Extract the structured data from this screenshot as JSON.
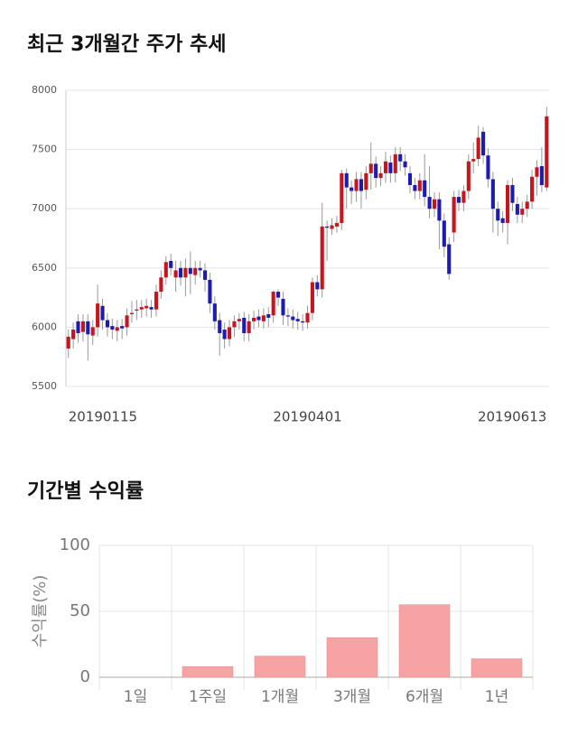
{
  "chart_data": [
    {
      "type": "candlestick",
      "title": "최근 3개월간 주가 추세",
      "categories": [
        "20190115",
        null,
        null,
        null,
        null,
        null,
        null,
        null,
        null,
        null,
        null,
        null,
        null,
        null,
        null,
        null,
        null,
        null,
        null,
        null,
        null,
        null,
        null,
        null,
        null,
        null,
        null,
        null,
        null,
        null,
        null,
        null,
        null,
        null,
        null,
        null,
        null,
        null,
        null,
        null,
        null,
        null,
        null,
        null,
        null,
        null,
        null,
        null,
        null,
        "20190401",
        null,
        null,
        null,
        null,
        null,
        null,
        null,
        null,
        null,
        null,
        null,
        null,
        null,
        null,
        null,
        null,
        null,
        null,
        null,
        null,
        null,
        null,
        null,
        null,
        null,
        null,
        null,
        null,
        null,
        null,
        null,
        null,
        null,
        null,
        null,
        null,
        null,
        null,
        null,
        null,
        null,
        null,
        null,
        null,
        null,
        null,
        null,
        null,
        "20190613"
      ],
      "open": [
        5820,
        5900,
        6050,
        5960,
        6050,
        5930,
        6000,
        6180,
        6060,
        6010,
        5970,
        6010,
        6000,
        6110,
        6140,
        6150,
        6160,
        6170,
        6150,
        6300,
        6420,
        6560,
        6420,
        6500,
        6420,
        6500,
        6440,
        6500,
        6480,
        6400,
        6200,
        6060,
        5980,
        5900,
        6000,
        6050,
        6080,
        5950,
        6050,
        6090,
        6050,
        6110,
        6100,
        6300,
        6240,
        6100,
        6090,
        6070,
        6050,
        6040,
        6120,
        6380,
        6320,
        6850,
        6830,
        6850,
        6880,
        7300,
        7180,
        7150,
        7250,
        7160,
        7300,
        7380,
        7260,
        7300,
        7390,
        7300,
        7460,
        7400,
        7300,
        7200,
        7150,
        7240,
        7100,
        7000,
        7080,
        6900,
        6700,
        6800,
        7100,
        7050,
        7150,
        7400,
        7420,
        7650,
        7450,
        7250,
        7000,
        6920,
        6880,
        7200,
        7040,
        6950,
        7000,
        7060,
        7270,
        7360,
        7180
      ],
      "high": [
        5980,
        6040,
        6110,
        6110,
        6110,
        6060,
        6360,
        6240,
        6120,
        6070,
        6060,
        6070,
        6160,
        6220,
        6230,
        6230,
        6240,
        6230,
        6360,
        6480,
        6600,
        6620,
        6560,
        6560,
        6580,
        6640,
        6560,
        6560,
        6540,
        6460,
        6260,
        6120,
        6040,
        6060,
        6100,
        6120,
        6130,
        6110,
        6140,
        6150,
        6160,
        6170,
        6310,
        6320,
        6300,
        6160,
        6150,
        6130,
        6110,
        6180,
        6420,
        6440,
        7050,
        6900,
        6920,
        6940,
        7330,
        7340,
        7240,
        7310,
        7310,
        7360,
        7560,
        7440,
        7360,
        7480,
        7450,
        7520,
        7520,
        7460,
        7360,
        7260,
        7300,
        7460,
        7360,
        7140,
        7140,
        6960,
        6760,
        7150,
        7160,
        7200,
        7460,
        7560,
        7700,
        7690,
        7510,
        7310,
        7060,
        6980,
        7240,
        7260,
        7100,
        7060,
        7120,
        7330,
        7410,
        7520,
        7860
      ],
      "low": [
        5740,
        5820,
        5870,
        5880,
        5720,
        5850,
        5920,
        5980,
        5920,
        5900,
        5880,
        5900,
        5930,
        6040,
        6060,
        6080,
        6090,
        6080,
        6090,
        6240,
        6360,
        6440,
        6300,
        6350,
        6260,
        6280,
        6360,
        6420,
        6300,
        6120,
        5980,
        5760,
        5820,
        5840,
        5920,
        5980,
        5880,
        5880,
        5980,
        6000,
        5990,
        6000,
        6040,
        6180,
        6020,
        6010,
        5990,
        5980,
        5970,
        5990,
        6060,
        6260,
        6250,
        6560,
        6780,
        6800,
        6820,
        7000,
        7040,
        7060,
        7000,
        7080,
        7160,
        7180,
        7190,
        7220,
        7220,
        7220,
        7320,
        7280,
        7130,
        7080,
        7080,
        7020,
        6920,
        6930,
        6660,
        6590,
        6400,
        6720,
        6980,
        6980,
        7080,
        7300,
        7360,
        7380,
        7180,
        6800,
        6770,
        6800,
        6700,
        6980,
        6880,
        6880,
        6930,
        7000,
        7110,
        7140,
        7150
      ],
      "close": [
        5920,
        5980,
        5950,
        6050,
        5940,
        6000,
        6200,
        6060,
        6000,
        5980,
        6000,
        5990,
        6100,
        6120,
        6150,
        6170,
        6180,
        6150,
        6300,
        6420,
        6550,
        6500,
        6480,
        6420,
        6500,
        6450,
        6500,
        6480,
        6400,
        6200,
        6050,
        5950,
        5900,
        6000,
        6050,
        6070,
        5950,
        6050,
        6080,
        6060,
        6100,
        6080,
        6300,
        6250,
        6100,
        6090,
        6060,
        6050,
        6040,
        6120,
        6380,
        6320,
        6850,
        6840,
        6860,
        6880,
        7300,
        7180,
        7150,
        7250,
        7150,
        7300,
        7380,
        7260,
        7300,
        7400,
        7300,
        7460,
        7400,
        7350,
        7200,
        7150,
        7240,
        7100,
        7000,
        7080,
        6900,
        6680,
        6450,
        7100,
        7050,
        7150,
        7400,
        7420,
        7600,
        7450,
        7250,
        7000,
        6900,
        6880,
        7200,
        7050,
        6950,
        7000,
        7060,
        7270,
        7350,
        7200,
        7780
      ],
      "up_color": "#c4161c",
      "down_color": "#1c1cb0",
      "ylim": [
        5500,
        8000
      ],
      "yticks": [
        5500,
        6000,
        6500,
        7000,
        7500,
        8000
      ],
      "grid": true
    },
    {
      "type": "bar",
      "title": "기간별 수익률",
      "y_label": "수익률(%)",
      "categories": [
        "1일",
        "1주일",
        "1개월",
        "3개월",
        "6개월",
        "1년"
      ],
      "values": [
        0,
        8,
        16,
        30,
        55,
        14
      ],
      "color": "#f7a3a3",
      "ylim": [
        0,
        100
      ],
      "yticks": [
        0,
        50,
        100
      ],
      "grid": true
    }
  ]
}
